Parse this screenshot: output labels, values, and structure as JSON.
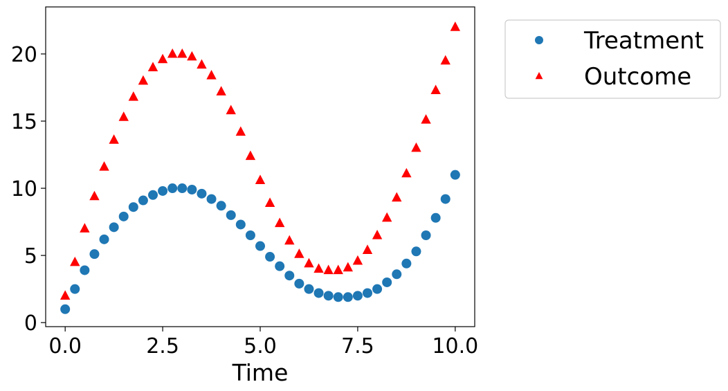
{
  "chart_data": {
    "type": "scatter",
    "title": "",
    "xlabel": "Time",
    "ylabel": "",
    "xlim": [
      -0.5,
      10.5
    ],
    "ylim": [
      -0.3,
      23.5
    ],
    "grid": false,
    "legend_position": "outside-top-right",
    "x_ticks": [
      0.0,
      2.5,
      5.0,
      7.5,
      10.0
    ],
    "x_tick_labels": [
      "0.0",
      "2.5",
      "5.0",
      "7.5",
      "10.0"
    ],
    "y_ticks": [
      0,
      5,
      10,
      15,
      20
    ],
    "y_tick_labels": [
      "0",
      "5",
      "10",
      "15",
      "20"
    ],
    "series": [
      {
        "name": "Treatment",
        "marker": "circle",
        "color": "#1f77b4",
        "x": [
          0.0,
          0.25,
          0.5,
          0.75,
          1.0,
          1.25,
          1.5,
          1.75,
          2.0,
          2.25,
          2.5,
          2.75,
          3.0,
          3.25,
          3.5,
          3.75,
          4.0,
          4.25,
          4.5,
          4.75,
          5.0,
          5.25,
          5.5,
          5.75,
          6.0,
          6.25,
          6.5,
          6.75,
          7.0,
          7.25,
          7.5,
          7.75,
          8.0,
          8.25,
          8.5,
          8.75,
          9.0,
          9.25,
          9.5,
          9.75,
          10.0
        ],
        "y": [
          1.0,
          2.5,
          3.9,
          5.1,
          6.2,
          7.1,
          7.9,
          8.6,
          9.1,
          9.5,
          9.8,
          10.0,
          10.0,
          9.9,
          9.6,
          9.2,
          8.7,
          8.0,
          7.3,
          6.5,
          5.7,
          4.9,
          4.2,
          3.5,
          2.9,
          2.5,
          2.2,
          2.0,
          1.9,
          1.9,
          2.0,
          2.2,
          2.5,
          3.0,
          3.6,
          4.4,
          5.3,
          6.5,
          7.8,
          9.2,
          11.0
        ]
      },
      {
        "name": "Outcome",
        "marker": "triangle",
        "color": "#ff0000",
        "x": [
          0.0,
          0.25,
          0.5,
          0.75,
          1.0,
          1.25,
          1.5,
          1.75,
          2.0,
          2.25,
          2.5,
          2.75,
          3.0,
          3.25,
          3.5,
          3.75,
          4.0,
          4.25,
          4.5,
          4.75,
          5.0,
          5.25,
          5.5,
          5.75,
          6.0,
          6.25,
          6.5,
          6.75,
          7.0,
          7.25,
          7.5,
          7.75,
          8.0,
          8.25,
          8.5,
          8.75,
          9.0,
          9.25,
          9.5,
          9.75,
          10.0
        ],
        "y": [
          2.0,
          4.5,
          7.0,
          9.4,
          11.6,
          13.6,
          15.3,
          16.8,
          18.0,
          19.0,
          19.6,
          20.0,
          20.0,
          19.8,
          19.2,
          18.4,
          17.2,
          15.8,
          14.2,
          12.4,
          10.6,
          8.9,
          7.4,
          6.1,
          5.1,
          4.4,
          4.0,
          3.9,
          3.9,
          4.1,
          4.6,
          5.4,
          6.5,
          7.8,
          9.3,
          11.1,
          13.0,
          15.1,
          17.3,
          19.5,
          22.0
        ]
      }
    ]
  }
}
